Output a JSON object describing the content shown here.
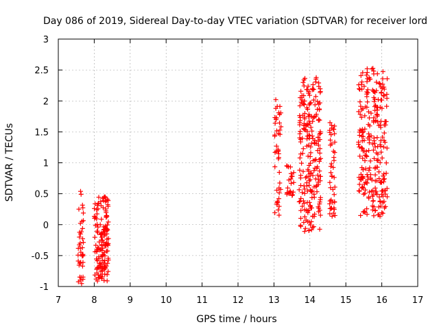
{
  "chart_data": {
    "type": "scatter",
    "title": "Day 086 of 2019, Sidereal Day-to-day VTEC variation (SDTVAR) for receiver lord",
    "xlabel": "GPS time / hours",
    "ylabel": "SDTVAR / TECUs",
    "xlim": [
      7,
      17
    ],
    "ylim": [
      -1,
      3
    ],
    "xticks": [
      "7",
      "8",
      "9",
      "10",
      "11",
      "12",
      "13",
      "14",
      "15",
      "16",
      "17"
    ],
    "yticks": [
      "-1",
      "-0.5",
      "0",
      "0.5",
      "1",
      "1.5",
      "2",
      "2.5",
      "3"
    ],
    "grid": true,
    "marker": "+",
    "color": "#ff0000",
    "clusters": [
      {
        "x": [
          7.55,
          7.7
        ],
        "y": [
          -0.98,
          0.58
        ],
        "n": 40
      },
      {
        "x": [
          8.0,
          8.4
        ],
        "y": [
          -0.92,
          0.48
        ],
        "n": 150
      },
      {
        "x": [
          13.02,
          13.2
        ],
        "y": [
          0.15,
          2.05
        ],
        "n": 45
      },
      {
        "x": [
          13.35,
          13.55
        ],
        "y": [
          0.45,
          0.98
        ],
        "n": 25
      },
      {
        "x": [
          13.7,
          14.3
        ],
        "y": [
          -0.12,
          2.38
        ],
        "n": 230
      },
      {
        "x": [
          14.55,
          14.7
        ],
        "y": [
          0.12,
          1.65
        ],
        "n": 45
      },
      {
        "x": [
          15.35,
          16.15
        ],
        "y": [
          0.1,
          2.55
        ],
        "n": 260
      }
    ]
  }
}
